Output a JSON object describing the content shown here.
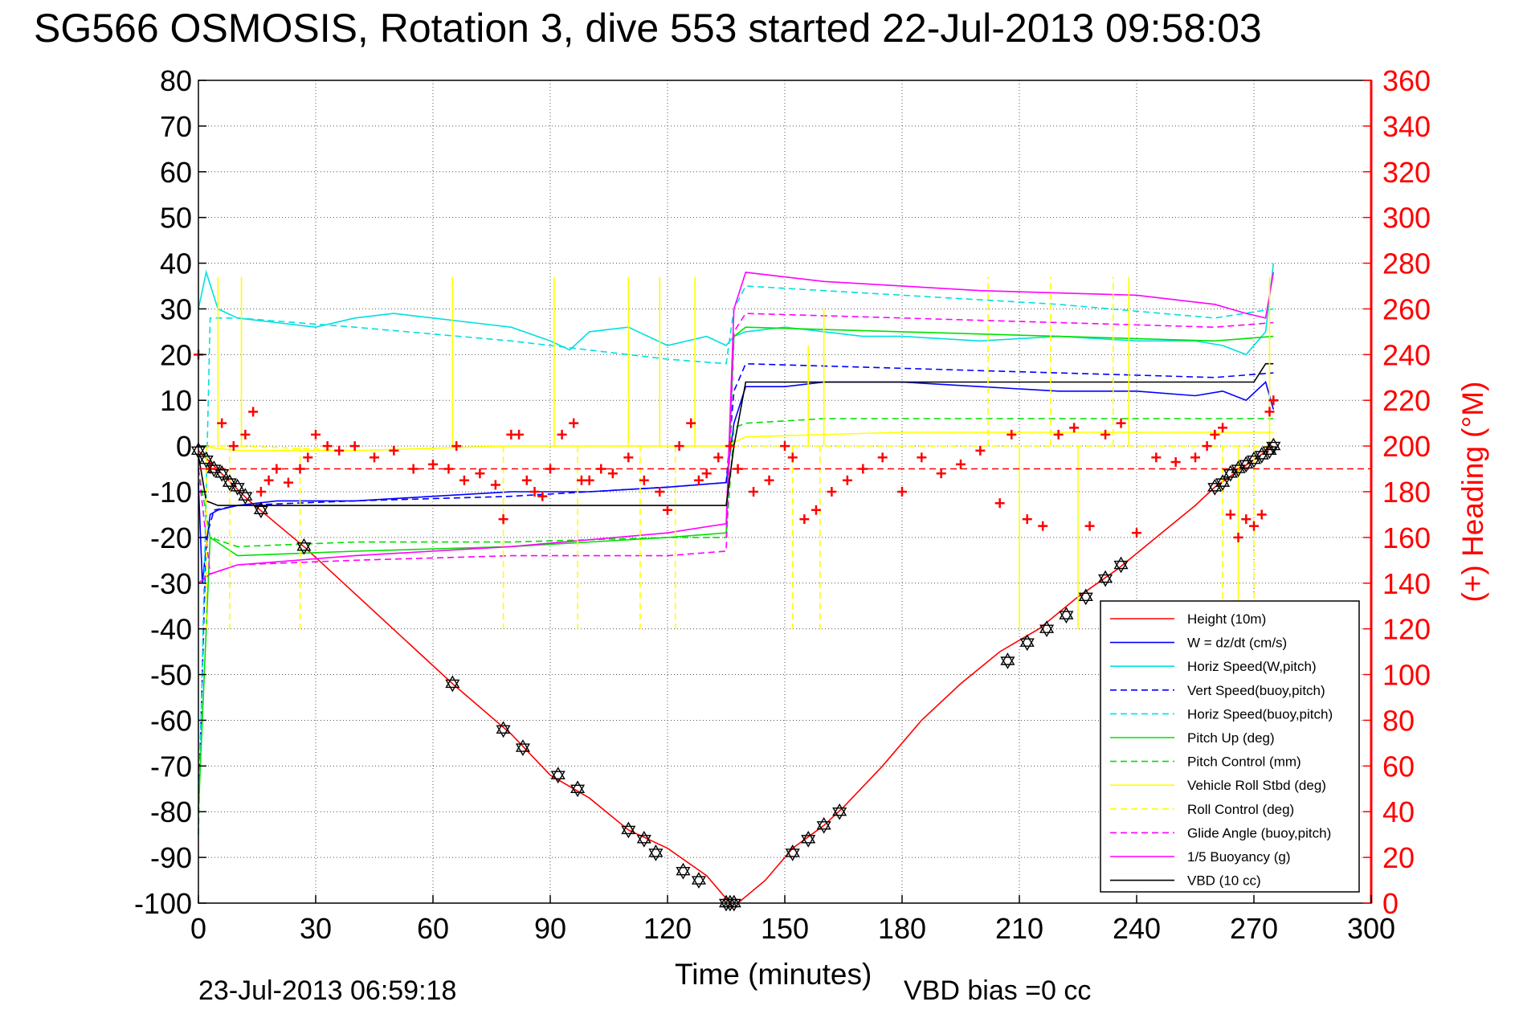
{
  "chart_data": {
    "type": "line",
    "title": "SG566 OSMOSIS, Rotation 3, dive 553 started 22-Jul-2013 09:58:03",
    "xlabel": "Time (minutes)",
    "ylabel": "",
    "y2label": "(+) Heading (°M)",
    "xlim": [
      0,
      300
    ],
    "ylim": [
      -100,
      80
    ],
    "y2lim": [
      0,
      360
    ],
    "xticks": [
      0,
      30,
      60,
      90,
      120,
      150,
      180,
      210,
      240,
      270,
      300
    ],
    "yticks": [
      80,
      70,
      60,
      50,
      40,
      30,
      20,
      10,
      0,
      -10,
      -20,
      -30,
      -40,
      -50,
      -60,
      -70,
      -80,
      -90,
      -100
    ],
    "y2ticks": [
      360,
      340,
      320,
      300,
      280,
      260,
      240,
      220,
      200,
      180,
      160,
      140,
      120,
      100,
      80,
      60,
      40,
      20,
      0
    ],
    "grid": true,
    "legend_position": "bottom-right",
    "footer_left": "23-Jul-2013 06:59:18",
    "footer_right": "VBD bias =0 cc",
    "series": [
      {
        "name": "Height (10m)",
        "color": "#ff0000",
        "style": "solid",
        "x": [
          0,
          13,
          27,
          65,
          80,
          90,
          100,
          110,
          120,
          130,
          136,
          138,
          145,
          152,
          160,
          165,
          175,
          185,
          195,
          205,
          215,
          225,
          235,
          245,
          255,
          260,
          265,
          270,
          275
        ],
        "y": [
          -1,
          -12,
          -22,
          -52,
          -63,
          -72,
          -77,
          -84,
          -88,
          -94,
          -100,
          -100,
          -95,
          -88,
          -83,
          -79,
          -70,
          -60,
          -52,
          -45,
          -40,
          -33,
          -27,
          -20,
          -13,
          -9,
          -6,
          -3,
          0
        ]
      },
      {
        "name": "W = dz/dt (cm/s)",
        "color": "#0000ff",
        "style": "solid",
        "x": [
          0,
          1,
          2,
          3,
          5,
          10,
          20,
          40,
          60,
          80,
          100,
          120,
          135,
          137,
          140,
          150,
          160,
          180,
          200,
          220,
          240,
          255,
          262,
          268,
          273,
          275
        ],
        "y": [
          -8,
          -30,
          -22,
          -15,
          -14,
          -13,
          -12,
          -12,
          -11,
          -10,
          -10,
          -9,
          -8,
          5,
          13,
          13,
          14,
          14,
          13,
          12,
          12,
          11,
          12,
          10,
          14,
          8
        ]
      },
      {
        "name": "Horiz Speed(W,pitch)",
        "color": "#00e0e0",
        "style": "solid",
        "x": [
          0,
          2,
          5,
          10,
          20,
          30,
          40,
          50,
          60,
          70,
          80,
          90,
          95,
          100,
          110,
          120,
          130,
          135,
          137,
          140,
          150,
          160,
          170,
          180,
          200,
          220,
          240,
          255,
          262,
          268,
          273,
          275
        ],
        "y": [
          30,
          38,
          30,
          28,
          27,
          26,
          28,
          29,
          28,
          27,
          26,
          23,
          21,
          25,
          26,
          22,
          24,
          22,
          24,
          25,
          26,
          25,
          24,
          24,
          23,
          24,
          23,
          23,
          22,
          20,
          25,
          40
        ]
      },
      {
        "name": "Vert Speed(buoy,pitch)",
        "color": "#0000ff",
        "style": "dashed",
        "x": [
          0,
          2,
          4,
          10,
          40,
          80,
          120,
          135,
          137,
          140,
          180,
          220,
          260,
          275
        ],
        "y": [
          -80,
          -20,
          -14,
          -13,
          -12,
          -11,
          -9,
          -8,
          12,
          18,
          17,
          16,
          15,
          16
        ]
      },
      {
        "name": "Horiz Speed(buoy,pitch)",
        "color": "#00e0e0",
        "style": "dashed",
        "x": [
          0,
          3,
          10,
          40,
          80,
          120,
          135,
          137,
          140,
          180,
          220,
          260,
          275
        ],
        "y": [
          -85,
          28,
          28,
          26,
          23,
          19,
          18,
          30,
          35,
          33,
          31,
          28,
          30
        ]
      },
      {
        "name": "Pitch Up (deg)",
        "color": "#00e000",
        "style": "solid",
        "x": [
          0,
          3,
          10,
          40,
          80,
          120,
          135,
          137,
          140,
          180,
          220,
          260,
          275
        ],
        "y": [
          -80,
          -20,
          -24,
          -23,
          -22,
          -20,
          -19,
          24,
          26,
          25,
          24,
          23,
          24
        ]
      },
      {
        "name": "Pitch Control (mm)",
        "color": "#00e000",
        "style": "dashed",
        "x": [
          0,
          3,
          10,
          40,
          80,
          120,
          135,
          137,
          140,
          160,
          200,
          240,
          275
        ],
        "y": [
          -5,
          -20,
          -22,
          -21,
          -21,
          -20,
          -20,
          4,
          5,
          6,
          6,
          6,
          6
        ]
      },
      {
        "name": "Vehicle Roll Stbd (deg)",
        "color": "#ffff00",
        "style": "solid",
        "x": [
          0,
          10,
          40,
          80,
          120,
          135,
          140,
          180,
          220,
          260,
          275
        ],
        "y": [
          0,
          -1,
          -1,
          0,
          0,
          0,
          2,
          3,
          3,
          3,
          3
        ]
      },
      {
        "name": "Roll Control (deg)",
        "color": "#ffff00",
        "style": "dashed",
        "x": [
          0,
          10,
          40,
          80,
          120,
          135,
          140,
          180,
          220,
          260,
          275
        ],
        "y": [
          0,
          0,
          -1,
          0,
          0,
          0,
          0,
          0,
          0,
          0,
          0
        ]
      },
      {
        "name": "Glide Angle (buoy,pitch)",
        "color": "#ff00ff",
        "style": "dashed",
        "x": [
          0,
          3,
          10,
          40,
          80,
          120,
          135,
          137,
          140,
          180,
          220,
          260,
          275
        ],
        "y": [
          -5,
          -28,
          -26,
          -25,
          -24,
          -24,
          -23,
          25,
          29,
          28,
          27,
          26,
          27
        ]
      },
      {
        "name": "1/5 Buoyancy (g)",
        "color": "#ff00ff",
        "style": "solid",
        "x": [
          0,
          3,
          10,
          40,
          80,
          120,
          135,
          137,
          140,
          160,
          200,
          240,
          260,
          268,
          273,
          275
        ],
        "y": [
          -30,
          -28,
          -26,
          -24,
          -22,
          -19,
          -17,
          30,
          38,
          36,
          34,
          33,
          31,
          29,
          28,
          38
        ]
      },
      {
        "name": "VBD (10 cc)",
        "color": "#000000",
        "style": "solid",
        "x": [
          0,
          2,
          5,
          10,
          40,
          80,
          120,
          135,
          137,
          140,
          180,
          220,
          260,
          270,
          273,
          275
        ],
        "y": [
          -2,
          -12,
          -13,
          -13,
          -13,
          -13,
          -13,
          -13,
          0,
          14,
          14,
          14,
          14,
          14,
          18,
          18
        ]
      }
    ],
    "heading": {
      "name": "(+) Heading",
      "color": "#ff0000",
      "mean": 190,
      "x": [
        0,
        3,
        6,
        9,
        12,
        14,
        16,
        18,
        20,
        23,
        26,
        28,
        30,
        33,
        36,
        40,
        45,
        50,
        55,
        60,
        64,
        66,
        68,
        72,
        76,
        78,
        80,
        82,
        84,
        86,
        88,
        90,
        93,
        96,
        98,
        100,
        103,
        106,
        110,
        114,
        118,
        120,
        123,
        126,
        128,
        130,
        133,
        136,
        138,
        142,
        146,
        150,
        152,
        155,
        158,
        162,
        166,
        170,
        175,
        180,
        185,
        190,
        195,
        200,
        205,
        208,
        212,
        216,
        220,
        224,
        228,
        232,
        236,
        240,
        245,
        250,
        255,
        258,
        260,
        262,
        264,
        266,
        268,
        270,
        272,
        274,
        275
      ],
      "y": [
        240,
        190,
        210,
        200,
        205,
        215,
        180,
        185,
        190,
        184,
        190,
        195,
        205,
        200,
        198,
        200,
        195,
        198,
        190,
        192,
        190,
        200,
        185,
        188,
        183,
        168,
        205,
        205,
        185,
        180,
        178,
        190,
        205,
        210,
        185,
        185,
        190,
        188,
        195,
        185,
        180,
        172,
        200,
        210,
        185,
        188,
        195,
        200,
        190,
        180,
        185,
        200,
        195,
        168,
        172,
        180,
        185,
        190,
        195,
        180,
        195,
        188,
        192,
        198,
        175,
        205,
        168,
        165,
        205,
        208,
        165,
        205,
        210,
        162,
        195,
        193,
        195,
        200,
        205,
        208,
        170,
        160,
        168,
        165,
        170,
        215,
        220
      ]
    },
    "markers": {
      "name": "dive markers",
      "color": "#000000",
      "x": [
        0,
        2,
        4,
        6,
        8,
        10,
        12,
        16,
        27,
        65,
        78,
        83,
        92,
        97,
        110,
        114,
        117,
        124,
        128,
        135,
        136,
        137,
        152,
        156,
        160,
        164,
        207,
        212,
        217,
        222,
        227,
        232,
        236,
        260,
        262,
        264,
        266,
        268,
        270,
        272,
        274,
        275
      ],
      "y": [
        -1,
        -3,
        -5,
        -6,
        -8,
        -9,
        -11,
        -14,
        -22,
        -52,
        -62,
        -66,
        -72,
        -75,
        -84,
        -86,
        -89,
        -93,
        -95,
        -100,
        -100,
        -100,
        -89,
        -86,
        -83,
        -80,
        -47,
        -43,
        -40,
        -37,
        -33,
        -29,
        -26,
        -9,
        -8,
        -6,
        -5,
        -4,
        -3,
        -2,
        -1,
        0
      ]
    },
    "spikes": {
      "color": "#ffff00",
      "x": [
        2,
        5,
        8,
        11,
        26,
        65,
        78,
        91,
        97,
        110,
        113,
        118,
        122,
        127,
        152,
        156,
        159,
        160,
        202,
        210,
        218,
        225,
        234,
        238,
        262,
        266,
        270,
        274
      ],
      "y": [
        -40,
        37,
        -40,
        37,
        -40,
        37,
        -40,
        37,
        -40,
        37,
        -40,
        37,
        -40,
        37,
        -40,
        22,
        -40,
        30,
        37,
        -40,
        37,
        -40,
        37,
        37,
        -40,
        -40,
        -40,
        37
      ]
    }
  }
}
